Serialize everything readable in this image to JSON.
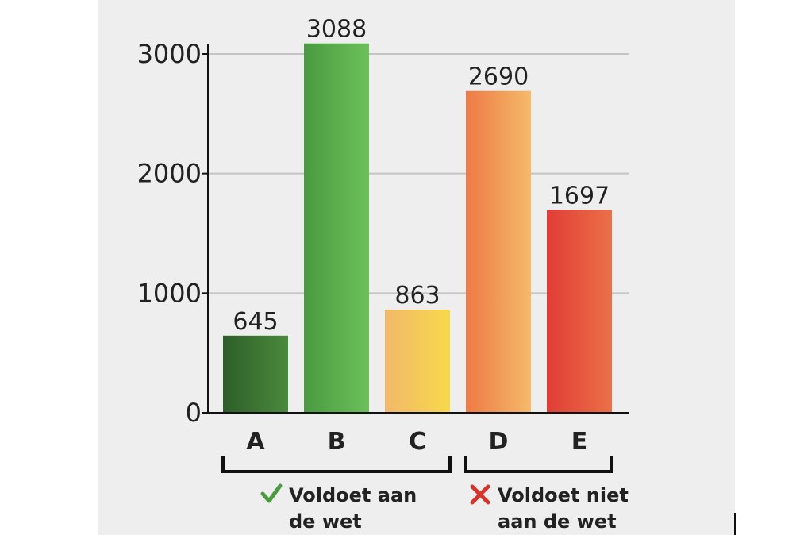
{
  "chart_data": {
    "type": "bar",
    "categories": [
      "A",
      "B",
      "C",
      "D",
      "E"
    ],
    "values": [
      645,
      3088,
      863,
      2690,
      1697
    ],
    "value_labels": [
      "645",
      "3088",
      "863",
      "2690",
      "1697"
    ],
    "title": "",
    "xlabel": "",
    "ylabel": "",
    "ylim": [
      0,
      3000
    ],
    "yticks": [
      0,
      1000,
      2000,
      3000
    ],
    "ytick_labels": [
      "0",
      "1000",
      "2000",
      "3000"
    ],
    "grid": true,
    "bar_colors": [
      [
        "#2e5e2a",
        "#4a8a3c"
      ],
      [
        "#4a9a40",
        "#6cc05a"
      ],
      [
        "#f2b86a",
        "#f7d94a"
      ],
      [
        "#ee7a45",
        "#f4ba6a"
      ],
      [
        "#e03d35",
        "#ec7048"
      ]
    ],
    "groups": [
      {
        "label_lines": [
          "Voldoet aan",
          "de wet"
        ],
        "icon": "check-icon",
        "icon_color": "#4a9a40",
        "categories": [
          "A",
          "B",
          "C"
        ]
      },
      {
        "label_lines": [
          "Voldoet niet",
          "aan de wet"
        ],
        "icon": "cross-icon",
        "icon_color": "#d9322a",
        "categories": [
          "D",
          "E"
        ]
      }
    ]
  }
}
